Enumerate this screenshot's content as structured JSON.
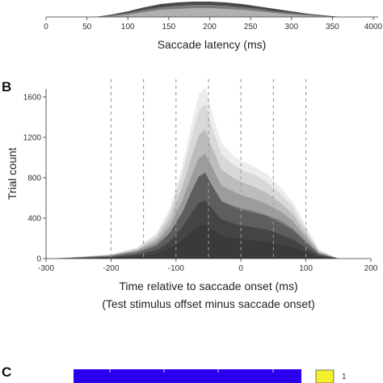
{
  "panels": {
    "a_partial": {
      "label": ""
    },
    "b": {
      "label": "B"
    },
    "c": {
      "label": "C"
    }
  },
  "colors": {
    "layers": [
      "#f0f0f0",
      "#e2e2e2",
      "#d0d0d0",
      "#bcbcbc",
      "#a4a4a4",
      "#888888",
      "#6c6c6c",
      "#505050",
      "#363636"
    ],
    "dashes": "#999999",
    "panel_c_bar": "#2b00ee",
    "panel_c_legend": "#f3ef2a"
  },
  "chart_data": [
    {
      "type": "area",
      "panel": "A (partially visible)",
      "xlabel": "Saccade latency (ms)",
      "ylabel": "",
      "xlim": [
        0,
        400
      ],
      "x_ticks": [
        "0",
        "50",
        "100",
        "150",
        "200",
        "250",
        "300",
        "350",
        "4000"
      ],
      "x": [
        60,
        80,
        100,
        120,
        140,
        160,
        180,
        200,
        220,
        240,
        260,
        280,
        300,
        320,
        340,
        360
      ],
      "series": [
        {
          "values": [
            0,
            1,
            3,
            6,
            9,
            10,
            11,
            11,
            10,
            9,
            7,
            5,
            3,
            2,
            1,
            0
          ]
        },
        {
          "values": [
            0,
            2,
            5,
            9,
            12,
            14,
            15,
            15,
            14,
            12,
            10,
            7,
            5,
            3,
            1,
            0
          ]
        },
        {
          "values": [
            0,
            3,
            7,
            12,
            16,
            18,
            19,
            19,
            18,
            16,
            13,
            10,
            7,
            4,
            2,
            0
          ]
        }
      ]
    },
    {
      "type": "area",
      "panel": "B",
      "title": "",
      "xlabel": "Time relative to saccade onset (ms)",
      "xlabel2": "(Test stimulus offset minus saccade onset)",
      "ylabel": "Trial count",
      "xlim": [
        -300,
        200
      ],
      "ylim": [
        0,
        1700
      ],
      "x_ticks": [
        "-300",
        "-200",
        "-100",
        "0",
        "100",
        "200"
      ],
      "y_ticks": [
        "0",
        "400",
        "800",
        "1200",
        "1600"
      ],
      "dashed_lines_x": [
        -200,
        -150,
        -100,
        -50,
        0,
        50,
        100
      ],
      "x": [
        -290,
        -250,
        -200,
        -160,
        -130,
        -110,
        -90,
        -75,
        -65,
        -55,
        -45,
        -30,
        -10,
        0,
        20,
        40,
        60,
        80,
        100,
        120,
        150
      ],
      "series": [
        {
          "values": [
            0,
            12,
            30,
            70,
            140,
            260,
            460,
            650,
            760,
            800,
            700,
            560,
            520,
            500,
            470,
            430,
            380,
            300,
            170,
            50,
            0
          ]
        },
        {
          "values": [
            0,
            12,
            32,
            80,
            170,
            320,
            580,
            840,
            990,
            1040,
            910,
            720,
            660,
            630,
            590,
            540,
            470,
            370,
            210,
            60,
            0
          ]
        },
        {
          "values": [
            0,
            15,
            35,
            90,
            200,
            390,
            710,
            1030,
            1220,
            1280,
            1110,
            880,
            790,
            760,
            710,
            650,
            560,
            440,
            250,
            70,
            0
          ]
        },
        {
          "values": [
            0,
            17,
            40,
            100,
            230,
            450,
            840,
            1230,
            1460,
            1530,
            1310,
            1030,
            920,
            880,
            830,
            760,
            650,
            510,
            290,
            80,
            0
          ]
        },
        {
          "values": [
            0,
            18,
            42,
            110,
            250,
            490,
            920,
            1360,
            1620,
            1700,
            1460,
            1140,
            1010,
            970,
            910,
            840,
            710,
            560,
            320,
            90,
            0
          ]
        }
      ]
    },
    {
      "type": "heatmap",
      "panel": "C (partially visible)",
      "legend_entries": [
        "1"
      ]
    }
  ]
}
